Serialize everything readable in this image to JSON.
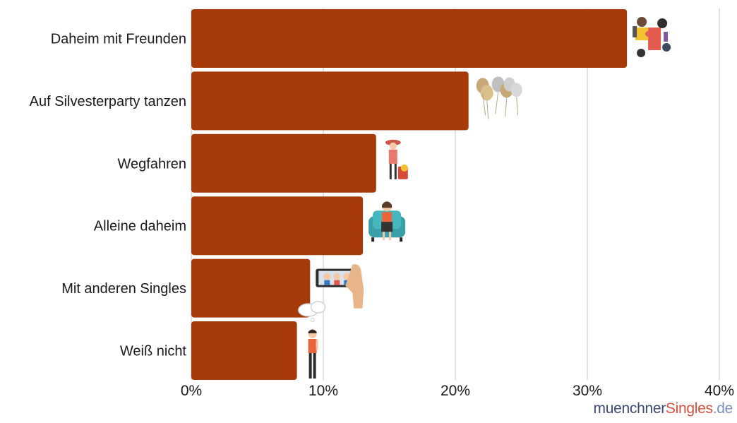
{
  "chart_data": {
    "type": "bar",
    "orientation": "horizontal",
    "categories": [
      "Daheim mit Freunden",
      "Auf Silvesterparty tanzen",
      "Wegfahren",
      "Alleine daheim",
      "Mit anderen Singles",
      "Weiß nicht"
    ],
    "values": [
      33,
      21,
      14,
      13,
      9,
      8
    ],
    "unit": "%",
    "xlim": [
      0,
      40
    ],
    "x_ticks": [
      "0%",
      "10%",
      "20%",
      "30%",
      "40%"
    ],
    "grid": "vertical",
    "bar_color": "#a63a08",
    "icons": [
      "puzzle-people-icon",
      "balloons-icon",
      "traveler-icon",
      "woman-armchair-icon",
      "selfie-phone-icon",
      "thinking-man-icon"
    ]
  },
  "brand": {
    "part1": "muenchner",
    "part2": "Singles",
    "part3": ".de"
  }
}
